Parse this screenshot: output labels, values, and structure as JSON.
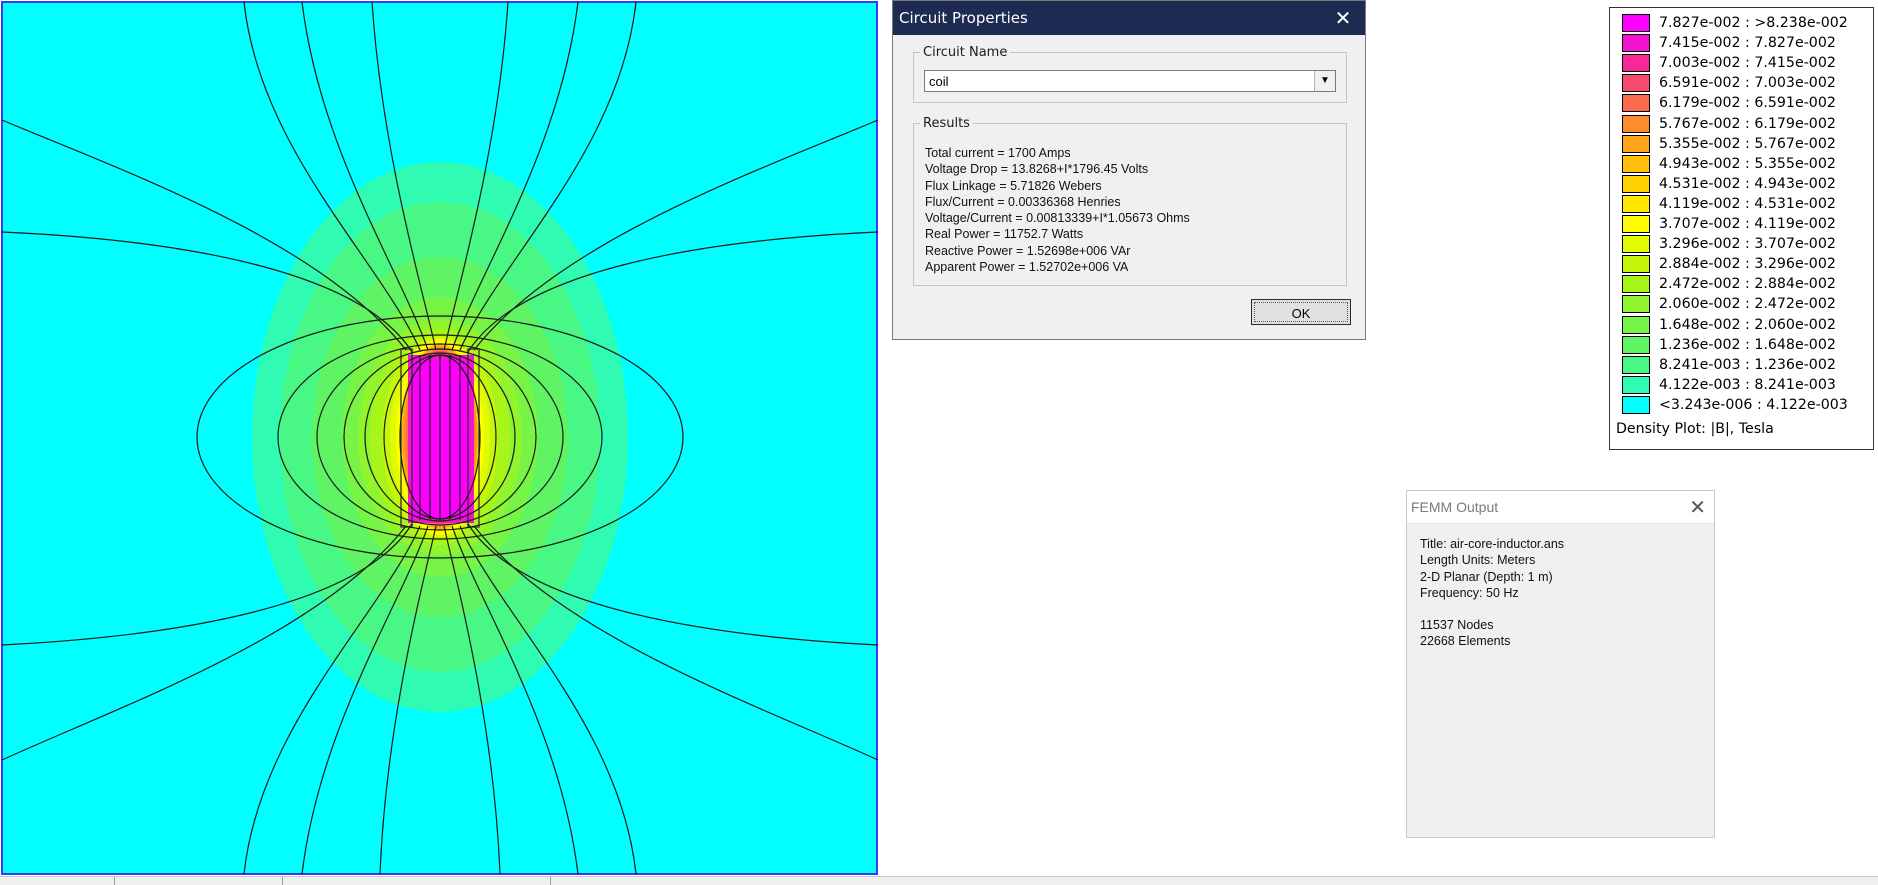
{
  "circuit_dialog": {
    "title": "Circuit Properties",
    "close_glyph": "✕",
    "name_group_label": "Circuit Name",
    "selected_circuit": "coil",
    "results_group_label": "Results",
    "results": [
      "Total current = 1700 Amps",
      "Voltage Drop = 13.8268+I*1796.45 Volts",
      "Flux Linkage = 5.71826 Webers",
      "Flux/Current = 0.00336368 Henries",
      "Voltage/Current = 0.00813339+I*1.05673 Ohms",
      "Real Power = 11752.7 Watts",
      "Reactive Power = 1.52698e+006 VAr",
      "Apparent Power = 1.52702e+006 VA"
    ],
    "ok_label": "OK"
  },
  "legend": {
    "entries": [
      {
        "label": "7.827e-002 : >8.238e-002",
        "color": "#ff00ff"
      },
      {
        "label": "7.415e-002 : 7.827e-002",
        "color": "#f312cf"
      },
      {
        "label": "7.003e-002 : 7.415e-002",
        "color": "#f8289b"
      },
      {
        "label": "6.591e-002 : 7.003e-002",
        "color": "#fb4a6f"
      },
      {
        "label": "6.179e-002 : 6.591e-002",
        "color": "#fc6b4b"
      },
      {
        "label": "5.767e-002 : 6.179e-002",
        "color": "#fd8c2c"
      },
      {
        "label": "5.355e-002 : 5.767e-002",
        "color": "#fea51a"
      },
      {
        "label": "4.943e-002 : 5.355e-002",
        "color": "#ffbd0c"
      },
      {
        "label": "4.531e-002 : 4.943e-002",
        "color": "#ffd300"
      },
      {
        "label": "4.119e-002 : 4.531e-002",
        "color": "#ffe800"
      },
      {
        "label": "3.707e-002 : 4.119e-002",
        "color": "#ffff00"
      },
      {
        "label": "3.296e-002 : 3.707e-002",
        "color": "#e2fb00"
      },
      {
        "label": "2.884e-002 : 3.296e-002",
        "color": "#c6f60a"
      },
      {
        "label": "2.472e-002 : 2.884e-002",
        "color": "#a8f51a"
      },
      {
        "label": "2.060e-002 : 2.472e-002",
        "color": "#90f42e"
      },
      {
        "label": "1.648e-002 : 2.060e-002",
        "color": "#78f447"
      },
      {
        "label": "1.236e-002 : 1.648e-002",
        "color": "#5ff463"
      },
      {
        "label": "8.241e-003 : 1.236e-002",
        "color": "#48f784"
      },
      {
        "label": "4.122e-003 : 8.241e-003",
        "color": "#2ffbb2"
      },
      {
        "label": "<3.243e-006 : 4.122e-003",
        "color": "#00ffff"
      }
    ],
    "caption": "Density Plot: |B|, Tesla"
  },
  "femm_output": {
    "title": "FEMM Output",
    "close_glyph": "✕",
    "info": [
      "Title: air-core-inductor.ans",
      "Length Units: Meters",
      "2-D Planar (Depth: 1 m)",
      "Frequency: 50 Hz"
    ],
    "mesh": [
      "11537 Nodes",
      "22668 Elements"
    ]
  },
  "plot": {
    "background_color": "#00ffff",
    "coil_color": "#ff00ff"
  }
}
